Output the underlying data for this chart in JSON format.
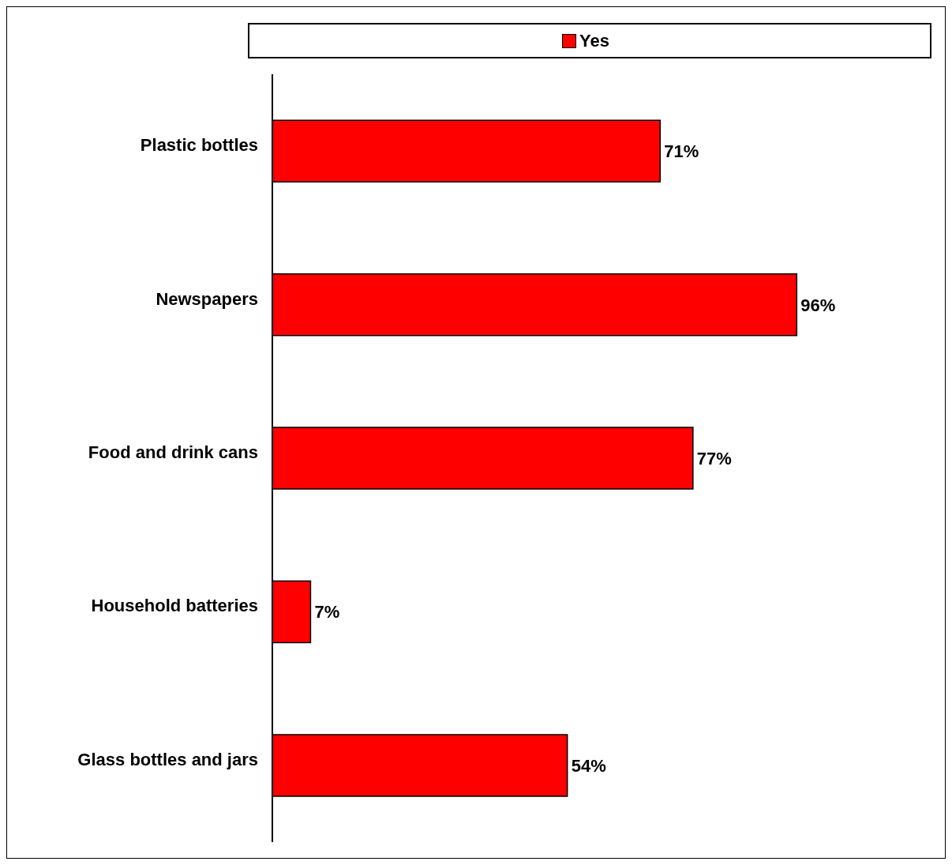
{
  "chart_data": {
    "type": "bar",
    "orientation": "horizontal",
    "categories": [
      "Plastic bottles",
      "Newspapers",
      "Food and drink cans",
      "Household batteries",
      "Glass bottles and jars"
    ],
    "series": [
      {
        "name": "Yes",
        "color": "#ff0000",
        "values": [
          71,
          96,
          77,
          7,
          54
        ],
        "value_labels": [
          "71%",
          "96%",
          "77%",
          "7%",
          "54%"
        ]
      }
    ],
    "legend": "top",
    "grid": false,
    "tick_labels": "y"
  }
}
